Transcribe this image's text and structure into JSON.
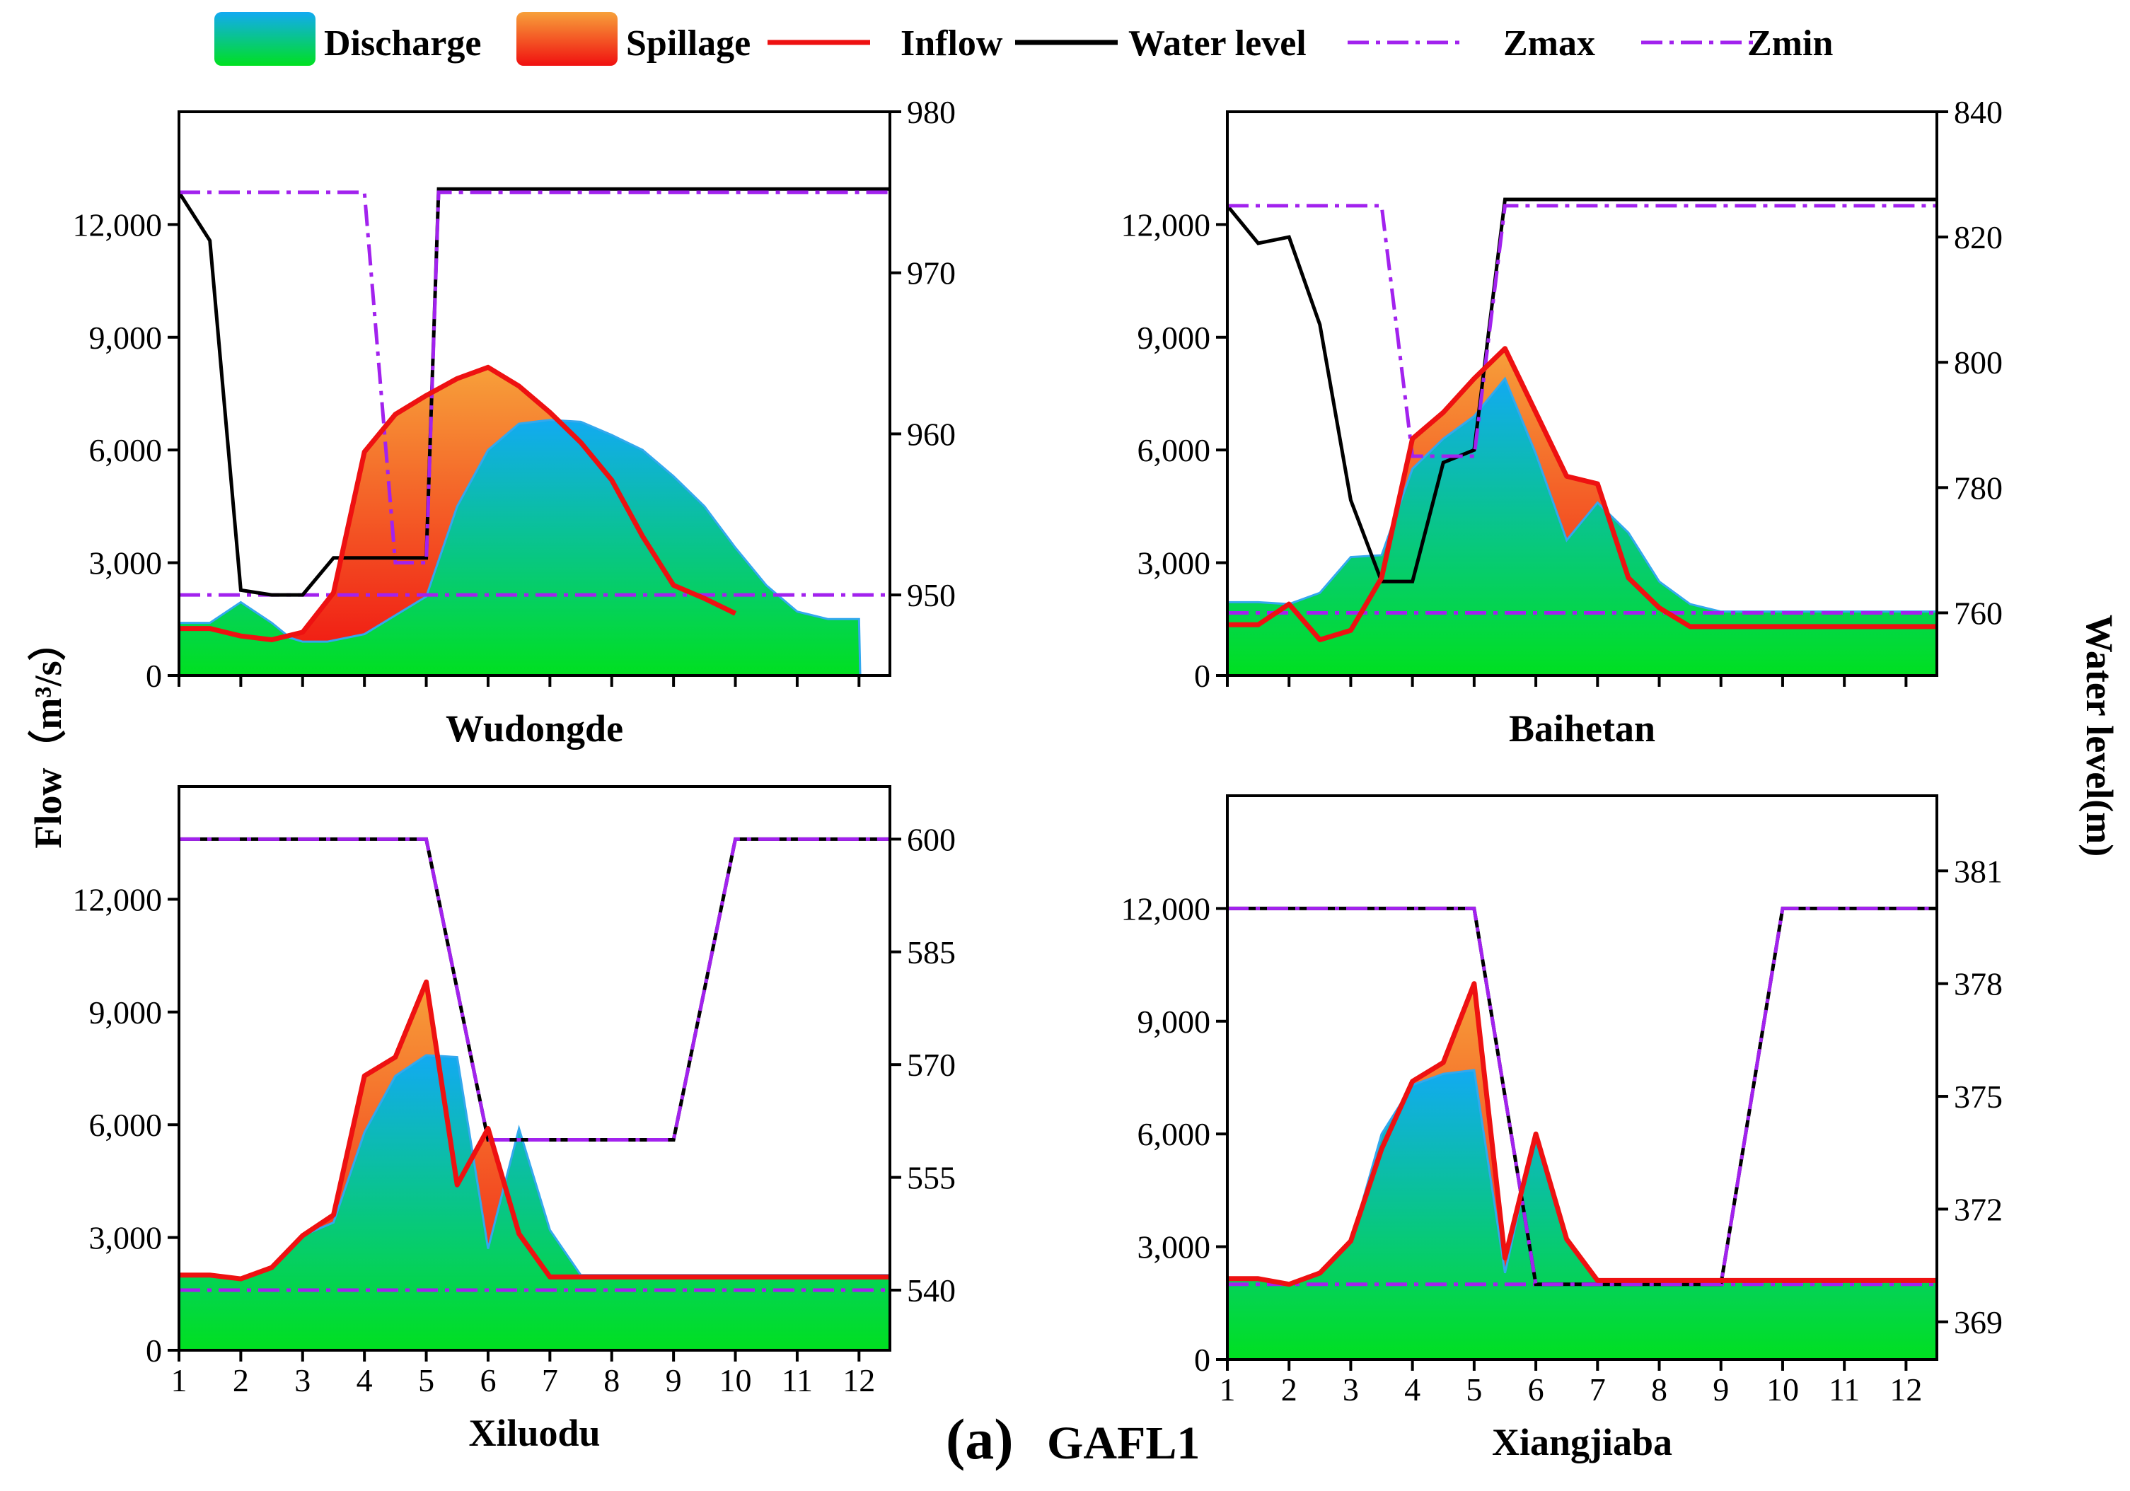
{
  "legend": [
    {
      "key": "discharge",
      "label": "Discharge",
      "kind": "area",
      "colors": [
        "#00e020",
        "#12aaf2"
      ]
    },
    {
      "key": "spillage",
      "label": "Spillage",
      "kind": "area",
      "colors": [
        "#f01010",
        "#f7a03a"
      ]
    },
    {
      "key": "inflow",
      "label": "Inflow",
      "kind": "line",
      "color": "#ee1111"
    },
    {
      "key": "water_level",
      "label": "Water level",
      "kind": "line",
      "color": "#000000"
    },
    {
      "key": "zmax",
      "label": "Zmax",
      "kind": "dashdot",
      "color": "#a222ee"
    },
    {
      "key": "zmin",
      "label": "Zmin",
      "kind": "dashdot",
      "color": "#a222ee"
    }
  ],
  "axis_titles": {
    "left": "Flow（m³/s）",
    "right": "Water level(m)"
  },
  "caption": {
    "letter": "(a)",
    "name": "GAFL1"
  },
  "chart_data": [
    {
      "type": "area",
      "title": "Wudongde",
      "x": [
        1,
        2,
        3,
        4,
        5,
        6,
        7,
        8,
        9,
        10,
        11,
        12
      ],
      "xlim": [
        1,
        12.5
      ],
      "ylim": [
        0,
        15000
      ],
      "y_ticks": [
        0,
        3000,
        6000,
        9000,
        12000
      ],
      "y_tick_labels": [
        "0",
        "3,000",
        "6,000",
        "9,000",
        "12,000"
      ],
      "y2lim": [
        945,
        980
      ],
      "y2_ticks": [
        950,
        960,
        970,
        980
      ],
      "show_x_tick_labels": false,
      "discharge": [
        [
          1,
          1400
        ],
        [
          1.5,
          1400
        ],
        [
          2,
          1950
        ],
        [
          2.5,
          1400
        ],
        [
          2.8,
          1000
        ],
        [
          3,
          900
        ],
        [
          3.4,
          900
        ],
        [
          4,
          1100
        ],
        [
          5,
          2100
        ],
        [
          5.5,
          4500
        ],
        [
          6,
          6000
        ],
        [
          6.5,
          6700
        ],
        [
          7,
          6800
        ],
        [
          7.5,
          6750
        ],
        [
          8,
          6400
        ],
        [
          8.5,
          6000
        ],
        [
          9,
          5300
        ],
        [
          9.5,
          4500
        ],
        [
          10,
          3400
        ],
        [
          10.5,
          2400
        ],
        [
          11,
          1700
        ],
        [
          11.5,
          1500
        ],
        [
          12,
          1500
        ],
        [
          12.02,
          0
        ]
      ],
      "inflow": [
        [
          1,
          1250
        ],
        [
          1.5,
          1250
        ],
        [
          2,
          1050
        ],
        [
          2.5,
          950
        ],
        [
          3,
          1150
        ],
        [
          3.5,
          2200
        ],
        [
          4,
          5950
        ],
        [
          4.5,
          6950
        ],
        [
          5,
          7450
        ],
        [
          5.5,
          7900
        ],
        [
          6,
          8200
        ],
        [
          6.5,
          7700
        ],
        [
          7,
          7000
        ],
        [
          7.5,
          6200
        ],
        [
          8,
          5200
        ],
        [
          8.5,
          3700
        ],
        [
          9,
          2400
        ],
        [
          9.5,
          2050
        ],
        [
          10,
          1650
        ]
      ],
      "water_level": [
        [
          1,
          975
        ],
        [
          1.5,
          972
        ],
        [
          2,
          950.3
        ],
        [
          2.5,
          950
        ],
        [
          3,
          950
        ],
        [
          3.5,
          952.3
        ],
        [
          4,
          952.3
        ],
        [
          4.5,
          952.3
        ],
        [
          5,
          952.3
        ],
        [
          5.2,
          975.2
        ],
        [
          5.8,
          975.2
        ],
        [
          6.5,
          975.2
        ],
        [
          7,
          975.2
        ],
        [
          7.5,
          975.2
        ],
        [
          8,
          975.2
        ],
        [
          9,
          975.2
        ],
        [
          10,
          975.2
        ],
        [
          12.5,
          975.2
        ]
      ],
      "zmax": [
        [
          1,
          975
        ],
        [
          4,
          975
        ],
        [
          4.5,
          952
        ],
        [
          5,
          952
        ],
        [
          5.2,
          975
        ],
        [
          12.5,
          975
        ]
      ],
      "zmin": [
        [
          1,
          950
        ],
        [
          12.5,
          950
        ]
      ]
    },
    {
      "type": "area",
      "title": "Baihetan",
      "x": [
        1,
        2,
        3,
        4,
        5,
        6,
        7,
        8,
        9,
        10,
        11,
        12
      ],
      "xlim": [
        1,
        12.5
      ],
      "ylim": [
        0,
        15000
      ],
      "y_ticks": [
        0,
        3000,
        6000,
        9000,
        12000
      ],
      "y_tick_labels": [
        "0",
        "3,000",
        "6,000",
        "9,000",
        "12,000"
      ],
      "y2lim": [
        750,
        840
      ],
      "y2_ticks": [
        760,
        780,
        800,
        820,
        840
      ],
      "show_x_tick_labels": false,
      "discharge": [
        [
          1,
          1950
        ],
        [
          1.5,
          1950
        ],
        [
          2,
          1900
        ],
        [
          2.5,
          2200
        ],
        [
          3,
          3150
        ],
        [
          3.5,
          3200
        ],
        [
          4,
          5500
        ],
        [
          4.5,
          6300
        ],
        [
          5,
          6900
        ],
        [
          5.5,
          7900
        ],
        [
          6,
          5900
        ],
        [
          6.5,
          3600
        ],
        [
          7,
          4600
        ],
        [
          7.5,
          3800
        ],
        [
          8,
          2500
        ],
        [
          8.5,
          1900
        ],
        [
          9,
          1700
        ],
        [
          9.5,
          1700
        ],
        [
          12.5,
          1700
        ]
      ],
      "inflow": [
        [
          1,
          1350
        ],
        [
          1.5,
          1350
        ],
        [
          2,
          1900
        ],
        [
          2.5,
          950
        ],
        [
          3,
          1200
        ],
        [
          3.5,
          2600
        ],
        [
          4,
          6300
        ],
        [
          4.5,
          7000
        ],
        [
          5,
          7900
        ],
        [
          5.5,
          8700
        ],
        [
          6,
          7000
        ],
        [
          6.5,
          5300
        ],
        [
          7,
          5100
        ],
        [
          7.5,
          2600
        ],
        [
          8,
          1800
        ],
        [
          8.5,
          1300
        ],
        [
          12.5,
          1300
        ]
      ],
      "water_level": [
        [
          1,
          825
        ],
        [
          1.5,
          819
        ],
        [
          2,
          820
        ],
        [
          2.5,
          806
        ],
        [
          3,
          778
        ],
        [
          3.5,
          765
        ],
        [
          4,
          765
        ],
        [
          4.5,
          784
        ],
        [
          5,
          786
        ],
        [
          5.5,
          826
        ],
        [
          12.5,
          826
        ]
      ],
      "zmax": [
        [
          1,
          825
        ],
        [
          3.5,
          825
        ],
        [
          4,
          785
        ],
        [
          5,
          785
        ],
        [
          5.5,
          825
        ],
        [
          12.5,
          825
        ]
      ],
      "zmin": [
        [
          1,
          760
        ],
        [
          12.5,
          760
        ]
      ]
    },
    {
      "type": "area",
      "title": "Xiluodu",
      "x": [
        1,
        2,
        3,
        4,
        5,
        6,
        7,
        8,
        9,
        10,
        11,
        12
      ],
      "xlim": [
        1,
        12.5
      ],
      "ylim": [
        0,
        15000
      ],
      "y_ticks": [
        0,
        3000,
        6000,
        9000,
        12000
      ],
      "y_tick_labels": [
        "0",
        "3,000",
        "6,000",
        "9,000",
        "12,000"
      ],
      "y2lim": [
        532,
        607
      ],
      "y2_ticks": [
        540,
        555,
        570,
        585,
        600
      ],
      "show_x_tick_labels": true,
      "discharge": [
        [
          1,
          2000
        ],
        [
          1.5,
          2000
        ],
        [
          2,
          1900
        ],
        [
          2.5,
          2200
        ],
        [
          3,
          3050
        ],
        [
          3.5,
          3400
        ],
        [
          4,
          5800
        ],
        [
          4.5,
          7300
        ],
        [
          5,
          7850
        ],
        [
          5.5,
          7800
        ],
        [
          6,
          2700
        ],
        [
          6.5,
          5900
        ],
        [
          7,
          3200
        ],
        [
          7.5,
          2000
        ],
        [
          8,
          2000
        ],
        [
          9,
          2000
        ],
        [
          12.5,
          2000
        ]
      ],
      "inflow": [
        [
          1,
          2000
        ],
        [
          1.5,
          2000
        ],
        [
          2,
          1900
        ],
        [
          2.5,
          2200
        ],
        [
          3,
          3050
        ],
        [
          3.5,
          3600
        ],
        [
          4,
          7300
        ],
        [
          4.5,
          7800
        ],
        [
          5,
          9800
        ],
        [
          5.5,
          4400
        ],
        [
          6,
          5900
        ],
        [
          6.5,
          3100
        ],
        [
          7,
          1950
        ],
        [
          9,
          1950
        ],
        [
          12.5,
          1950
        ]
      ],
      "water_level": [
        [
          1,
          600
        ],
        [
          5,
          600
        ],
        [
          6,
          560
        ],
        [
          9,
          560
        ],
        [
          10,
          600
        ],
        [
          12.5,
          600
        ]
      ],
      "zmax": [
        [
          1,
          600
        ],
        [
          5,
          600
        ],
        [
          6,
          560
        ],
        [
          9,
          560
        ],
        [
          10,
          600
        ],
        [
          12.5,
          600
        ]
      ],
      "zmin": [
        [
          1,
          540
        ],
        [
          12.5,
          540
        ]
      ]
    },
    {
      "type": "area",
      "title": "Xiangjiaba",
      "x": [
        1,
        2,
        3,
        4,
        5,
        6,
        7,
        8,
        9,
        10,
        11,
        12
      ],
      "xlim": [
        1,
        12.5
      ],
      "ylim": [
        0,
        15000
      ],
      "y_ticks": [
        0,
        3000,
        6000,
        9000,
        12000
      ],
      "y_tick_labels": [
        "0",
        "3,000",
        "6,000",
        "9,000",
        "12,000"
      ],
      "y2lim": [
        368,
        383
      ],
      "y2_ticks": [
        369,
        372,
        375,
        378,
        381
      ],
      "show_x_tick_labels": true,
      "discharge": [
        [
          1,
          2150
        ],
        [
          1.5,
          2150
        ],
        [
          2,
          2000
        ],
        [
          2.5,
          2300
        ],
        [
          3,
          3100
        ],
        [
          3.5,
          6000
        ],
        [
          4,
          7300
        ],
        [
          4.5,
          7600
        ],
        [
          5,
          7700
        ],
        [
          5.5,
          2300
        ],
        [
          6,
          6000
        ],
        [
          6.5,
          3200
        ],
        [
          7,
          2100
        ],
        [
          12.5,
          2100
        ]
      ],
      "inflow": [
        [
          1,
          2150
        ],
        [
          1.5,
          2150
        ],
        [
          2,
          2000
        ],
        [
          2.5,
          2300
        ],
        [
          3,
          3150
        ],
        [
          3.5,
          5600
        ],
        [
          4,
          7400
        ],
        [
          4.5,
          7900
        ],
        [
          5,
          10000
        ],
        [
          5.5,
          2700
        ],
        [
          6,
          6000
        ],
        [
          6.5,
          3200
        ],
        [
          7,
          2100
        ],
        [
          12.5,
          2100
        ]
      ],
      "water_level": [
        [
          1,
          380
        ],
        [
          5,
          380
        ],
        [
          6,
          370
        ],
        [
          9,
          370
        ],
        [
          10,
          380
        ],
        [
          12.5,
          380
        ]
      ],
      "zmax": [
        [
          1,
          380
        ],
        [
          5,
          380
        ],
        [
          6,
          370
        ],
        [
          9,
          370
        ],
        [
          10,
          380
        ],
        [
          12.5,
          380
        ]
      ],
      "zmin": [
        [
          1,
          370
        ],
        [
          12.5,
          370
        ]
      ]
    }
  ]
}
